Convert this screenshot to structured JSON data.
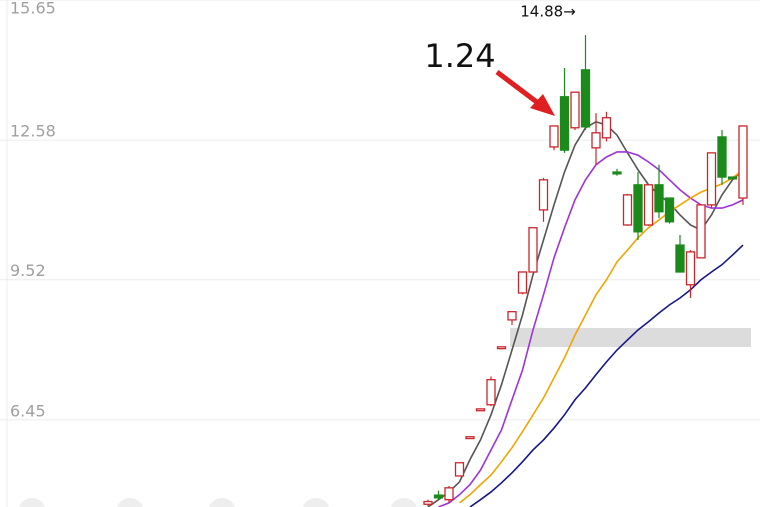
{
  "chart_data": {
    "type": "candlestick",
    "ylim": [
      4.54,
      15.65
    ],
    "yticks": [
      15.65,
      12.58,
      9.52,
      6.45
    ],
    "grid": true,
    "up_color": "#c9252c",
    "down_color": "#1b8a1b",
    "open": [
      4.6,
      4.8,
      4.7,
      5.22,
      6.04,
      6.65,
      6.78,
      8.01,
      8.64,
      9.23,
      9.69,
      11.05,
      12.43,
      13.53,
      12.85,
      14.12,
      12.41,
      12.63,
      11.88,
      10.72,
      11.6,
      10.72,
      11.6,
      11.31,
      10.28,
      9.41,
      10.0,
      11.16,
      12.65,
      11.77,
      11.31
    ],
    "high": [
      4.7,
      4.9,
      5.0,
      5.51,
      6.08,
      6.69,
      7.4,
      8.05,
      8.82,
      9.69,
      10.66,
      11.75,
      12.89,
      14.16,
      13.63,
      14.88,
      13.17,
      13.2,
      11.95,
      11.4,
      11.88,
      11.6,
      12.04,
      11.31,
      10.5,
      10.17,
      11.16,
      12.3,
      12.8,
      11.77,
      12.89
    ],
    "low": [
      4.56,
      4.7,
      4.63,
      5.22,
      6.04,
      6.65,
      6.75,
      8.01,
      8.53,
      9.2,
      9.69,
      10.79,
      12.36,
      12.3,
      12.8,
      12.8,
      12.04,
      12.55,
      11.8,
      10.7,
      10.39,
      10.7,
      10.87,
      10.75,
      9.69,
      9.12,
      10.0,
      11.1,
      11.6,
      11.73,
      11.16
    ],
    "close": [
      4.66,
      4.74,
      4.96,
      5.51,
      6.08,
      6.69,
      7.33,
      8.05,
      8.82,
      9.69,
      10.66,
      11.71,
      12.89,
      12.36,
      13.63,
      12.87,
      12.74,
      13.07,
      11.84,
      11.38,
      10.57,
      11.6,
      11.01,
      10.79,
      9.69,
      10.13,
      11.16,
      12.3,
      11.77,
      11.73,
      12.89
    ],
    "series": [
      {
        "color": "#555555",
        "values": [
          4.54,
          4.7,
          4.87,
          5.09,
          5.58,
          6.01,
          6.56,
          7.22,
          7.98,
          8.75,
          9.63,
          10.39,
          11.16,
          11.88,
          12.47,
          12.85,
          12.98,
          12.91,
          12.69,
          12.3,
          11.93,
          11.6,
          11.38,
          11.2,
          10.94,
          10.72,
          10.61,
          10.94,
          11.38,
          11.71,
          11.93
        ]
      },
      {
        "color": "#a032d8",
        "values": [
          null,
          4.54,
          4.63,
          4.81,
          5.03,
          5.35,
          5.79,
          6.23,
          6.89,
          7.54,
          8.42,
          9.19,
          10.0,
          10.66,
          11.27,
          11.71,
          12.04,
          12.21,
          12.32,
          12.32,
          12.25,
          12.1,
          11.93,
          11.71,
          11.49,
          11.31,
          11.16,
          11.09,
          11.09,
          11.16,
          11.27
        ]
      },
      {
        "color": "#f2a500",
        "values": [
          null,
          null,
          null,
          4.63,
          4.81,
          5.03,
          5.24,
          5.53,
          5.84,
          6.19,
          6.56,
          6.93,
          7.37,
          7.81,
          8.31,
          8.75,
          9.19,
          9.52,
          9.91,
          10.17,
          10.44,
          10.66,
          10.83,
          11.01,
          11.16,
          11.31,
          11.44,
          11.53,
          11.62,
          11.75,
          11.93
        ]
      },
      {
        "color": "#17178a",
        "values": [
          null,
          null,
          null,
          null,
          4.54,
          4.7,
          4.87,
          5.07,
          5.29,
          5.53,
          5.79,
          6.01,
          6.27,
          6.56,
          6.89,
          7.15,
          7.44,
          7.72,
          7.98,
          8.2,
          8.42,
          8.6,
          8.79,
          8.97,
          9.12,
          9.3,
          9.52,
          9.69,
          9.85,
          10.06,
          10.28
        ]
      }
    ],
    "annotations": [
      "14.88→",
      "1.24"
    ]
  }
}
